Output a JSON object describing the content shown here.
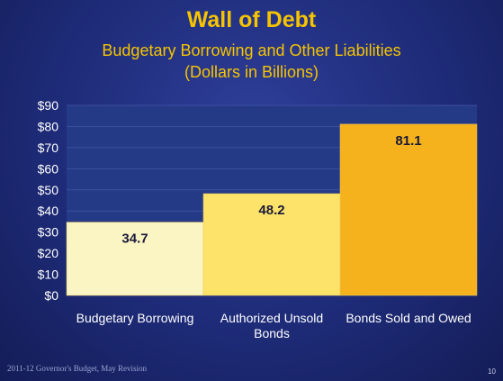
{
  "title": "Wall of Debt",
  "subtitle_line1": "Budgetary Borrowing and Other Liabilities",
  "subtitle_line2": "(Dollars in Billions)",
  "footer": "2011-12 Governor's Budget, May Revision",
  "page_number": "10",
  "colors": {
    "background": "#1e2b78",
    "plot_area": "#253a86",
    "title": "#f5c400",
    "bar1": "#fbf4c3",
    "bar2": "#fde36a",
    "bar3": "#f5b21c"
  },
  "chart_data": {
    "type": "bar",
    "title": "Wall of Debt",
    "subtitle": "Budgetary Borrowing and Other Liabilities (Dollars in Billions)",
    "xlabel": "",
    "ylabel": "",
    "categories": [
      "Budgetary Borrowing",
      "Authorized Unsold Bonds",
      "Bonds Sold and Owed"
    ],
    "category_label_lines": [
      [
        "Budgetary Borrowing"
      ],
      [
        "Authorized Unsold",
        "Bonds"
      ],
      [
        "Bonds Sold and Owed"
      ]
    ],
    "values": [
      34.7,
      48.2,
      81.1
    ],
    "data_labels": [
      "34.7",
      "48.2",
      "81.1"
    ],
    "ylim": [
      0,
      90
    ],
    "yticks": [
      0,
      10,
      20,
      30,
      40,
      50,
      60,
      70,
      80,
      90
    ],
    "ytick_labels": [
      "$0",
      "$10",
      "$20",
      "$30",
      "$40",
      "$50",
      "$60",
      "$70",
      "$80",
      "$90"
    ],
    "grid": true,
    "legend": "none"
  }
}
